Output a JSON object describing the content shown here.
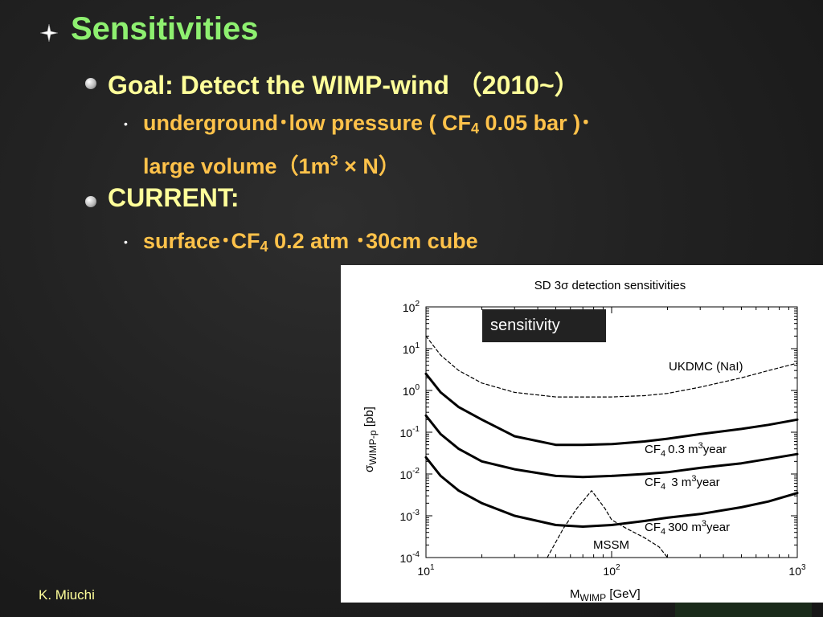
{
  "slide": {
    "heading": "Sensitivities",
    "goal": "Goal: Detect the WIMP-wind （2010~）",
    "goal_detail": {
      "part1": "underground･low pressure ( CF",
      "sub1": "4",
      "part2": " 0.05 bar )･",
      "part3": "large volume（1m",
      "sup1": "3",
      "part4": " × N）"
    },
    "current": "CURRENT:",
    "current_detail": {
      "part1": "surface･CF",
      "sub1": "4",
      "part2": " 0.2 atm ･30cm cube"
    },
    "footer": "K. Miuchi",
    "overlay_label": "sensitivity"
  },
  "colors": {
    "heading": "#8ef070",
    "level2": "#ffff9a",
    "level3": "#ffc24a",
    "background": "#222222"
  },
  "icons": {
    "level1_bullet": "four-point-star-icon",
    "level2_bullet": "sphere-bullet-icon",
    "level3_bullet": "small-dot-icon"
  },
  "chart_data": {
    "type": "line",
    "title": "SD 3σ detection sensitivities",
    "xlabel": "M_WIMP [GeV]",
    "ylabel": "σ_WIMP-p [pb]",
    "xscale": "log",
    "yscale": "log",
    "xlim": [
      10,
      1000
    ],
    "ylim": [
      0.0001,
      100
    ],
    "xticks": [
      "10^1",
      "10^2",
      "10^3"
    ],
    "yticks": [
      "10^-4",
      "10^-3",
      "10^-2",
      "10^-1",
      "10^0",
      "10^1",
      "10^2"
    ],
    "grid": false,
    "series": [
      {
        "name": "UKDMC (NaI)",
        "style": "dashed",
        "x": [
          10,
          12,
          15,
          20,
          30,
          50,
          70,
          100,
          150,
          200,
          300,
          500,
          700,
          1000
        ],
        "y": [
          20,
          7,
          3,
          1.5,
          0.9,
          0.7,
          0.7,
          0.7,
          0.75,
          0.85,
          1.2,
          2.0,
          3.0,
          4.5
        ]
      },
      {
        "name": "CF4 0.3 m³year",
        "style": "solid",
        "x": [
          10,
          12,
          15,
          20,
          30,
          50,
          70,
          100,
          150,
          200,
          300,
          500,
          700,
          1000
        ],
        "y": [
          2.5,
          0.9,
          0.4,
          0.2,
          0.08,
          0.05,
          0.05,
          0.052,
          0.06,
          0.07,
          0.09,
          0.12,
          0.15,
          0.2
        ]
      },
      {
        "name": "CF4 3 m³year",
        "style": "solid",
        "x": [
          10,
          12,
          15,
          20,
          30,
          50,
          70,
          100,
          150,
          200,
          300,
          500,
          700,
          1000
        ],
        "y": [
          0.25,
          0.09,
          0.04,
          0.02,
          0.013,
          0.009,
          0.0085,
          0.009,
          0.01,
          0.011,
          0.014,
          0.018,
          0.023,
          0.03
        ]
      },
      {
        "name": "CF4 300 m³year",
        "style": "solid",
        "x": [
          10,
          12,
          15,
          20,
          30,
          50,
          70,
          100,
          150,
          200,
          300,
          500,
          700,
          1000
        ],
        "y": [
          0.025,
          0.009,
          0.004,
          0.002,
          0.001,
          0.0006,
          0.00055,
          0.0006,
          0.00075,
          0.0009,
          0.0011,
          0.0016,
          0.0022,
          0.0035
        ]
      },
      {
        "name": "MSSM",
        "style": "dashed-region",
        "x": [
          45,
          55,
          65,
          78,
          92,
          100,
          120,
          150,
          180,
          200
        ],
        "y": [
          0.0001,
          0.0005,
          0.0015,
          0.004,
          0.0015,
          0.0008,
          0.0005,
          0.0003,
          0.00018,
          0.0001
        ]
      }
    ],
    "labels": {
      "ukdmc": "UKDMC (NaI)",
      "cf4_03": {
        "a": "CF",
        "b": "4",
        "c": "0.3 m",
        "d": "3",
        "e": "year"
      },
      "cf4_3": {
        "a": "CF",
        "b": "4",
        "c": "   3 m",
        "d": "3",
        "e": "year"
      },
      "cf4_300": {
        "a": "CF",
        "b": "4",
        "c": "300 m",
        "d": "3",
        "e": "year"
      },
      "mssm": "MSSM",
      "xlabel": {
        "a": "M",
        "b": "WIMP",
        "c": " [GeV]"
      },
      "ylabel": {
        "a": "σ",
        "b": "WIMP-p",
        "c": " [pb]"
      }
    }
  }
}
